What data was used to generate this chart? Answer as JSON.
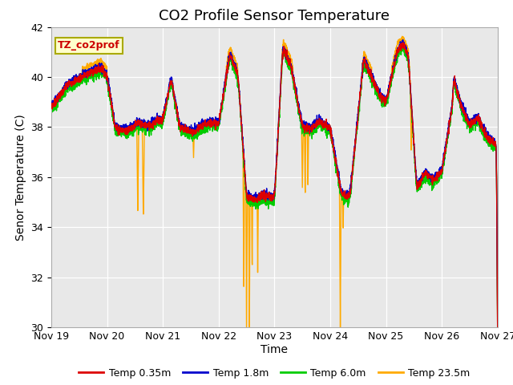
{
  "title": "CO2 Profile Sensor Temperature",
  "ylabel": "Senor Temperature (C)",
  "xlabel": "Time",
  "ylim": [
    30,
    42
  ],
  "yticks": [
    30,
    32,
    34,
    36,
    38,
    40,
    42
  ],
  "xtick_labels": [
    "Nov 19",
    "Nov 20",
    "Nov 21",
    "Nov 22",
    "Nov 23",
    "Nov 24",
    "Nov 25",
    "Nov 26",
    "Nov 27"
  ],
  "legend_label": "TZ_co2prof",
  "series_labels": [
    "Temp 0.35m",
    "Temp 1.8m",
    "Temp 6.0m",
    "Temp 23.5m"
  ],
  "series_colors": [
    "#dd0000",
    "#0000cc",
    "#00cc00",
    "#ffaa00"
  ],
  "background_color": "#e8e8e8",
  "title_fontsize": 13,
  "axis_fontsize": 10,
  "tick_fontsize": 9,
  "legend_box_color": "#ffffcc",
  "legend_box_edge": "#aaaa00"
}
